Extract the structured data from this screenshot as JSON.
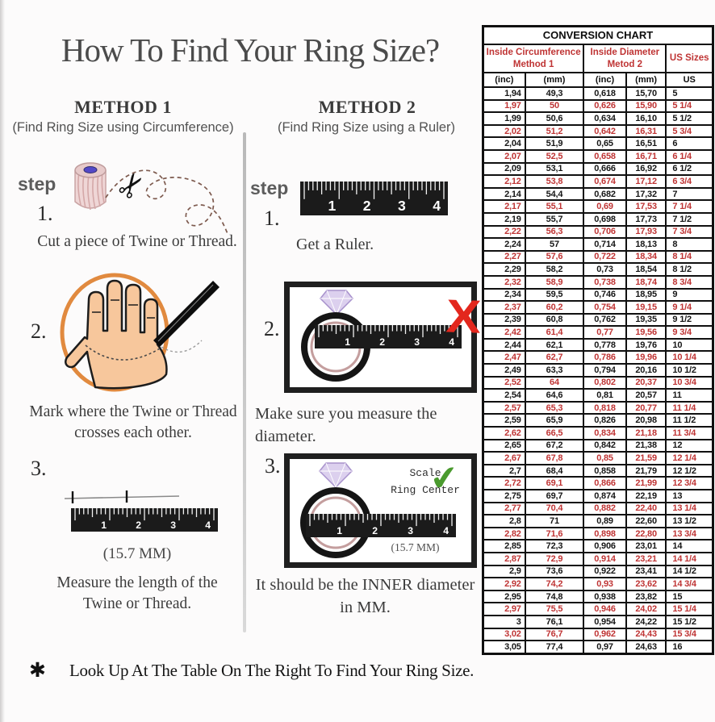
{
  "page": {
    "title": "How To Find Your Ring Size?",
    "footnote_marker": "✱",
    "footnote": "Look Up At The Table On The Right To Find Your Ring Size."
  },
  "method1": {
    "heading": "METHOD 1",
    "subheading": "(Find Ring Size using Circumference)",
    "step_label": "step",
    "step1_num": "1.",
    "step1_caption": "Cut a piece of  Twine or Thread.",
    "step2_num": "2.",
    "step2_caption": "Mark where the Twine or Thread\ncrosses each other.",
    "step3_num": "3.",
    "step3_measure": "(15.7 MM)",
    "step3_caption": "Measure the length of the\nTwine or Thread."
  },
  "method2": {
    "heading": "METHOD 2",
    "subheading": "(Find Ring Size using a Ruler)",
    "step_label": "step",
    "step1_num": "1.",
    "step1_caption": "Get a Ruler.",
    "step2_num": "2.",
    "step2_caption": "Make sure you measure the diameter.",
    "step3_num": "3.",
    "step3_scale_note": "Scale\nRing Center",
    "step3_measure": "(15.7 MM)",
    "step3_caption": "It should be the INNER diameter\nin MM."
  },
  "ruler": {
    "numbers": [
      "1",
      "2",
      "3",
      "4"
    ]
  },
  "colors": {
    "table_red": "#bf3434",
    "x_mark_red": "#e3271d",
    "check_green": "#4a9a2e",
    "circle_orange": "#e18a3f"
  },
  "table": {
    "title": "CONVERSION CHART",
    "group1": "Inside Circumference\nMethod 1",
    "group2": "Inside Diameter\nMetod 2",
    "group3": "US Sizes",
    "cols": [
      "(inc)",
      "(mm)",
      "(inc)",
      "(mm)",
      "US"
    ],
    "rows": [
      [
        "1,94",
        "49,3",
        "0,618",
        "15,70",
        "5"
      ],
      [
        "1,97",
        "50",
        "0,626",
        "15,90",
        "5 1/4"
      ],
      [
        "1,99",
        "50,6",
        "0,634",
        "16,10",
        "5 1/2"
      ],
      [
        "2,02",
        "51,2",
        "0,642",
        "16,31",
        "5 3/4"
      ],
      [
        "2,04",
        "51,9",
        "0,65",
        "16,51",
        "6"
      ],
      [
        "2,07",
        "52,5",
        "0,658",
        "16,71",
        "6 1/4"
      ],
      [
        "2,09",
        "53,1",
        "0,666",
        "16,92",
        "6 1/2"
      ],
      [
        "2,12",
        "53,8",
        "0,674",
        "17,12",
        "6 3/4"
      ],
      [
        "2,14",
        "54,4",
        "0,682",
        "17,32",
        "7"
      ],
      [
        "2,17",
        "55,1",
        "0,69",
        "17,53",
        "7 1/4"
      ],
      [
        "2,19",
        "55,7",
        "0,698",
        "17,73",
        "7 1/2"
      ],
      [
        "2,22",
        "56,3",
        "0,706",
        "17,93",
        "7 3/4"
      ],
      [
        "2,24",
        "57",
        "0,714",
        "18,13",
        "8"
      ],
      [
        "2,27",
        "57,6",
        "0,722",
        "18,34",
        "8 1/4"
      ],
      [
        "2,29",
        "58,2",
        "0,73",
        "18,54",
        "8 1/2"
      ],
      [
        "2,32",
        "58,9",
        "0,738",
        "18,74",
        "8 3/4"
      ],
      [
        "2,34",
        "59,5",
        "0,746",
        "18,95",
        "9"
      ],
      [
        "2,37",
        "60,2",
        "0,754",
        "19,15",
        "9 1/4"
      ],
      [
        "2,39",
        "60,8",
        "0,762",
        "19,35",
        "9 1/2"
      ],
      [
        "2,42",
        "61,4",
        "0,77",
        "19,56",
        "9 3/4"
      ],
      [
        "2,44",
        "62,1",
        "0,778",
        "19,76",
        "10"
      ],
      [
        "2,47",
        "62,7",
        "0,786",
        "19,96",
        "10 1/4"
      ],
      [
        "2,49",
        "63,3",
        "0,794",
        "20,16",
        "10 1/2"
      ],
      [
        "2,52",
        "64",
        "0,802",
        "20,37",
        "10 3/4"
      ],
      [
        "2,54",
        "64,6",
        "0,81",
        "20,57",
        "11"
      ],
      [
        "2,57",
        "65,3",
        "0,818",
        "20,77",
        "11 1/4"
      ],
      [
        "2,59",
        "65,9",
        "0,826",
        "20,98",
        "11 1/2"
      ],
      [
        "2,62",
        "66,5",
        "0,834",
        "21,18",
        "11 3/4"
      ],
      [
        "2,65",
        "67,2",
        "0,842",
        "21,38",
        "12"
      ],
      [
        "2,67",
        "67,8",
        "0,85",
        "21,59",
        "12 1/4"
      ],
      [
        "2,7",
        "68,4",
        "0,858",
        "21,79",
        "12 1/2"
      ],
      [
        "2,72",
        "69,1",
        "0,866",
        "21,99",
        "12 3/4"
      ],
      [
        "2,75",
        "69,7",
        "0,874",
        "22,19",
        "13"
      ],
      [
        "2,77",
        "70,4",
        "0,882",
        "22,40",
        "13 1/4"
      ],
      [
        "2,8",
        "71",
        "0,89",
        "22,60",
        "13 1/2"
      ],
      [
        "2,82",
        "71,6",
        "0,898",
        "22,80",
        "13 3/4"
      ],
      [
        "2,85",
        "72,3",
        "0,906",
        "23,01",
        "14"
      ],
      [
        "2,87",
        "72,9",
        "0,914",
        "23,21",
        "14 1/4"
      ],
      [
        "2,9",
        "73,6",
        "0,922",
        "23,41",
        "14 1/2"
      ],
      [
        "2,92",
        "74,2",
        "0,93",
        "23,62",
        "14 3/4"
      ],
      [
        "2,95",
        "74,8",
        "0,938",
        "23,82",
        "15"
      ],
      [
        "2,97",
        "75,5",
        "0,946",
        "24,02",
        "15 1/4"
      ],
      [
        "3",
        "76,1",
        "0,954",
        "24,22",
        "15 1/2"
      ],
      [
        "3,02",
        "76,7",
        "0,962",
        "24,43",
        "15 3/4"
      ],
      [
        "3,05",
        "77,4",
        "0,97",
        "24,63",
        "16"
      ]
    ]
  }
}
